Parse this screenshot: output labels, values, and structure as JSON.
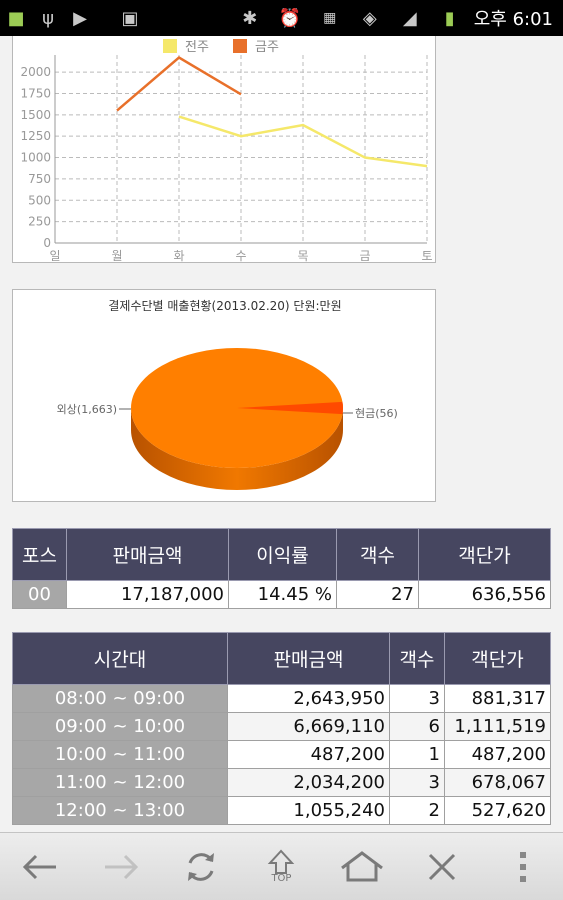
{
  "status": {
    "time": "오후 6:01",
    "icons": [
      "android-icon",
      "usb-icon",
      "play-icon",
      "image-icon",
      "bluetooth-icon",
      "alarm-icon",
      "data-icon",
      "wifi-icon",
      "signal-icon",
      "battery-icon"
    ]
  },
  "line_chart": {
    "legend": [
      "전주",
      "금주"
    ],
    "chart_data": {
      "type": "line",
      "categories": [
        "일",
        "월",
        "화",
        "수",
        "목",
        "금",
        "토"
      ],
      "series": [
        {
          "name": "전주",
          "color": "#f5e86a",
          "values": [
            null,
            null,
            1480,
            1250,
            1380,
            1000,
            900
          ]
        },
        {
          "name": "금주",
          "color": "#e8702a",
          "values": [
            null,
            1550,
            2170,
            1740,
            null,
            null,
            null
          ]
        }
      ],
      "yticks": [
        "0",
        "250",
        "500",
        "750",
        "1000",
        "1250",
        "1500",
        "1750",
        "2000"
      ],
      "ylim": [
        0,
        2200
      ]
    }
  },
  "pie_chart": {
    "title": "결제수단별 매출현황(2013.02.20) 단원:만원",
    "chart_data": {
      "type": "pie",
      "slices": [
        {
          "label": "외상(1,663)",
          "value": 1663,
          "color": "#ff7f00"
        },
        {
          "label": "현금(56)",
          "value": 56,
          "color": "#ff4a00"
        }
      ]
    }
  },
  "summary_table": {
    "headers": [
      "포스",
      "판매금액",
      "이익률",
      "객수",
      "객단가"
    ],
    "rows": [
      [
        "00",
        "17,187,000",
        "14.45 %",
        "27",
        "636,556"
      ]
    ]
  },
  "hourly_table": {
    "headers": [
      "시간대",
      "판매금액",
      "객수",
      "객단가"
    ],
    "rows": [
      [
        "08:00 ~ 09:00",
        "2,643,950",
        "3",
        "881,317"
      ],
      [
        "09:00 ~ 10:00",
        "6,669,110",
        "6",
        "1,111,519"
      ],
      [
        "10:00 ~ 11:00",
        "487,200",
        "1",
        "487,200"
      ],
      [
        "11:00 ~ 12:00",
        "2,034,200",
        "3",
        "678,067"
      ],
      [
        "12:00 ~ 13:00",
        "1,055,240",
        "2",
        "527,620"
      ]
    ]
  },
  "toolbar": {
    "top_label": "TOP",
    "buttons": [
      "back-icon",
      "forward-icon",
      "refresh-icon",
      "top-icon",
      "home-icon",
      "close-icon",
      "menu-icon"
    ]
  }
}
